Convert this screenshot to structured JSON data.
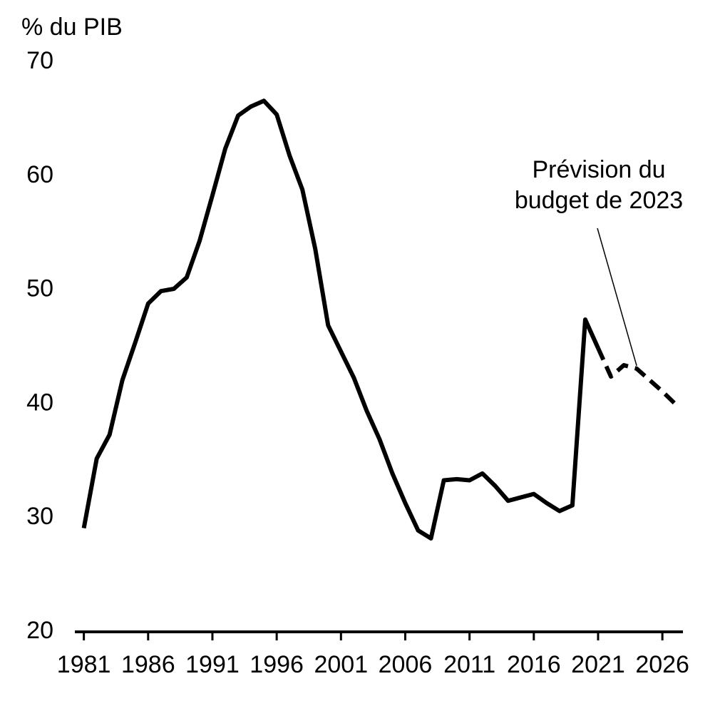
{
  "chart_data": {
    "type": "line",
    "y_label": "% du PIB",
    "x": [
      1981,
      1982,
      1983,
      1984,
      1985,
      1986,
      1987,
      1988,
      1989,
      1990,
      1991,
      1992,
      1993,
      1994,
      1995,
      1996,
      1997,
      1998,
      1999,
      2000,
      2001,
      2002,
      2003,
      2004,
      2005,
      2006,
      2007,
      2008,
      2009,
      2010,
      2011,
      2012,
      2013,
      2014,
      2015,
      2016,
      2017,
      2018,
      2019,
      2020,
      2021,
      2022,
      2023,
      2024,
      2025,
      2026,
      2027
    ],
    "series": [
      {
        "color": "#000000",
        "dash": false,
        "values": [
          29.1,
          35.2,
          37.3,
          42.1,
          45.4,
          48.8,
          49.9,
          50.1,
          51.1,
          54.3,
          58.3,
          62.4,
          65.3,
          66.1,
          66.6,
          65.4,
          61.8,
          58.8,
          53.6,
          46.9,
          44.6,
          42.3,
          39.4,
          36.9,
          33.9,
          31.3,
          28.9,
          28.2,
          33.3,
          33.4,
          33.3,
          33.9,
          32.8,
          31.5,
          31.8,
          32.1,
          31.3,
          30.6,
          31.1,
          47.4,
          44.9,
          null,
          null,
          null,
          null,
          null,
          null
        ]
      },
      {
        "color": "#000000",
        "dash": true,
        "values": [
          null,
          null,
          null,
          null,
          null,
          null,
          null,
          null,
          null,
          null,
          null,
          null,
          null,
          null,
          null,
          null,
          null,
          null,
          null,
          null,
          null,
          null,
          null,
          null,
          null,
          null,
          null,
          null,
          null,
          null,
          null,
          null,
          null,
          null,
          null,
          null,
          null,
          null,
          null,
          null,
          44.9,
          42.4,
          43.4,
          43.1,
          42.1,
          41.1,
          40.0
        ]
      }
    ],
    "annotation": {
      "text": [
        "Prévision du",
        "budget de 2023"
      ],
      "x": 2024,
      "y": 43.1
    },
    "xlim": [
      1980.3,
      2027.6
    ],
    "xticks": [
      1981,
      1986,
      1991,
      1996,
      2001,
      2006,
      2011,
      2016,
      2021,
      2026
    ],
    "ylim": [
      20,
      70
    ],
    "yticks": [
      20,
      30,
      40,
      50,
      60,
      70
    ],
    "grid": false
  }
}
